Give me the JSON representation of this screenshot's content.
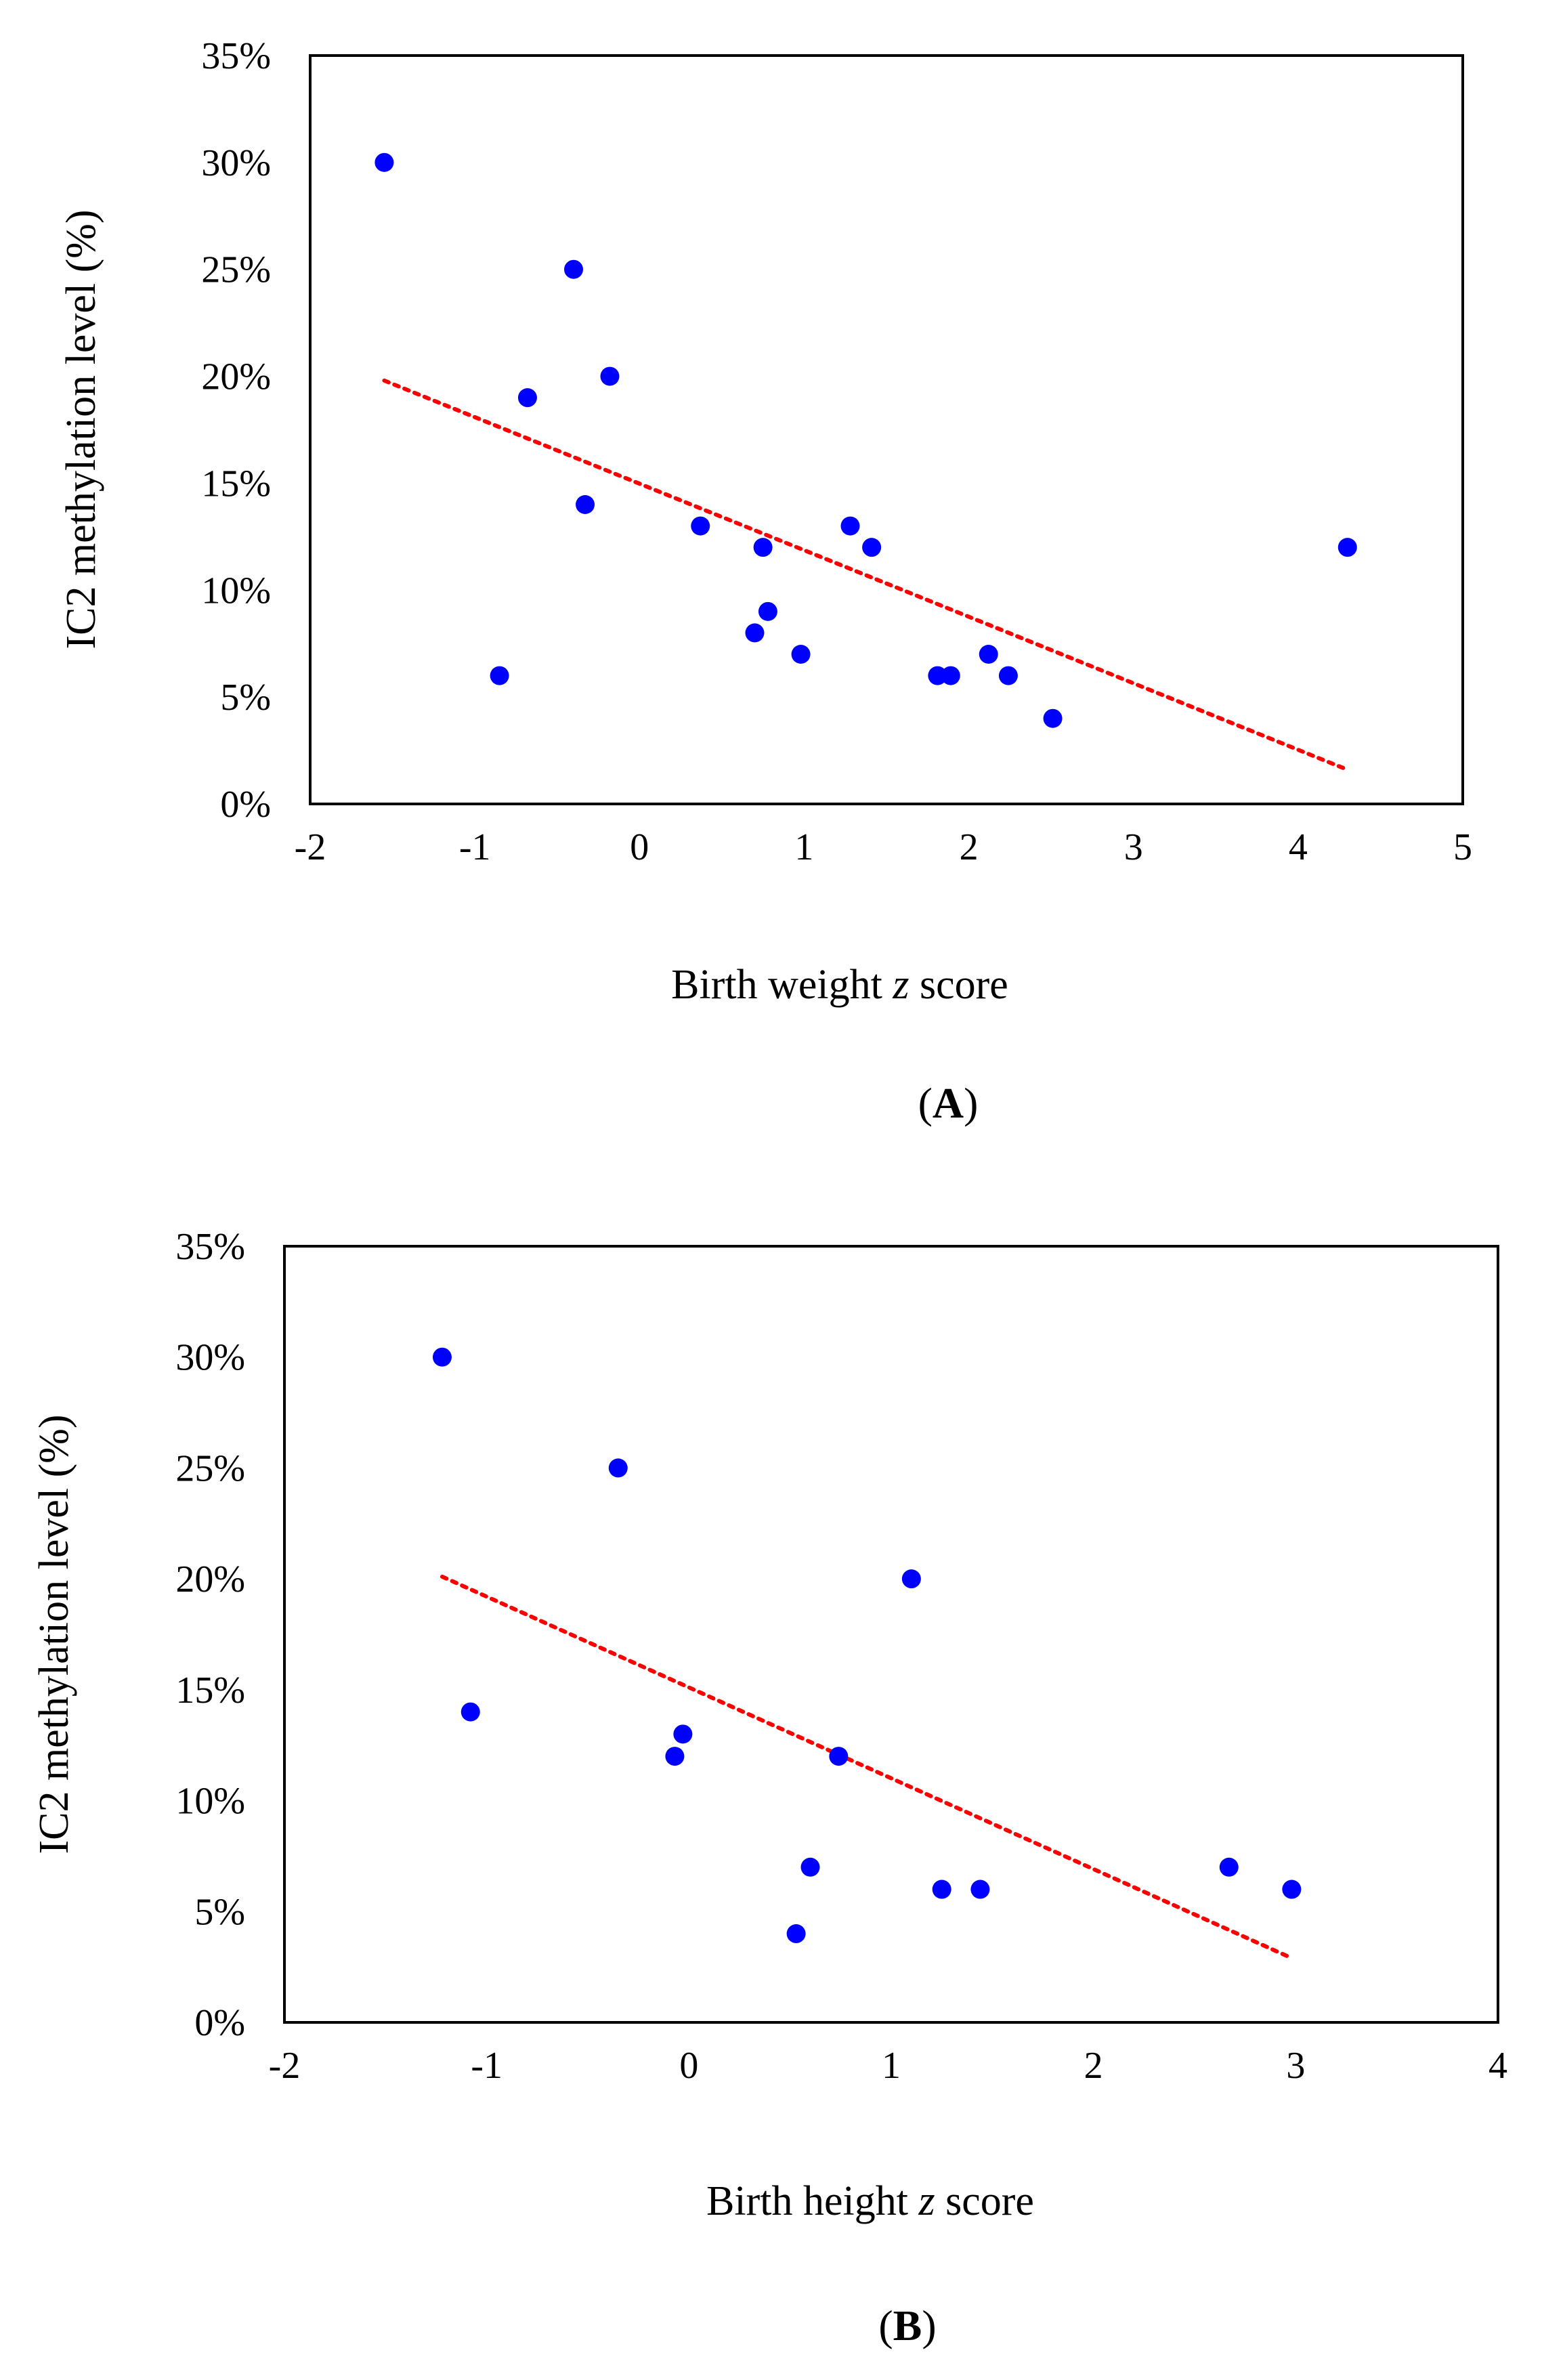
{
  "colors": {
    "point": "#0000ff",
    "trendline": "#ff0000",
    "axis": "#000000",
    "background": "#ffffff"
  },
  "chart_data": [
    {
      "type": "scatter",
      "panel_label": "A",
      "xlabel_prefix": "Birth weight ",
      "xlabel_var": "z",
      "xlabel_suffix": " score",
      "ylabel": "IC2 methylation level (%)",
      "xlim": [
        -2,
        5
      ],
      "ylim": [
        0,
        35
      ],
      "x_ticks": [
        -2,
        -1,
        0,
        1,
        2,
        3,
        4,
        5
      ],
      "x_tick_labels": [
        "-2",
        "-1",
        "0",
        "1",
        "2",
        "3",
        "4",
        "5"
      ],
      "y_ticks": [
        0,
        5,
        10,
        15,
        20,
        25,
        30,
        35
      ],
      "y_tick_labels": [
        "0%",
        "5%",
        "10%",
        "15%",
        "20%",
        "25%",
        "30%",
        "35%"
      ],
      "points": [
        {
          "x": -1.55,
          "y": 30
        },
        {
          "x": -0.85,
          "y": 6
        },
        {
          "x": -0.68,
          "y": 19
        },
        {
          "x": -0.4,
          "y": 25
        },
        {
          "x": -0.33,
          "y": 14
        },
        {
          "x": -0.18,
          "y": 20
        },
        {
          "x": 0.37,
          "y": 13
        },
        {
          "x": 0.7,
          "y": 8
        },
        {
          "x": 0.75,
          "y": 12
        },
        {
          "x": 0.78,
          "y": 9
        },
        {
          "x": 0.98,
          "y": 7
        },
        {
          "x": 1.28,
          "y": 13
        },
        {
          "x": 1.41,
          "y": 12
        },
        {
          "x": 1.81,
          "y": 6
        },
        {
          "x": 1.89,
          "y": 6
        },
        {
          "x": 2.12,
          "y": 7
        },
        {
          "x": 2.24,
          "y": 6
        },
        {
          "x": 2.51,
          "y": 4
        },
        {
          "x": 4.3,
          "y": 12
        }
      ],
      "trendline": {
        "x1": -1.55,
        "y1": 19.8,
        "x2": 4.3,
        "y2": 1.6
      }
    },
    {
      "type": "scatter",
      "panel_label": "B",
      "xlabel_prefix": "Birth height ",
      "xlabel_var": "z",
      "xlabel_suffix": " score",
      "ylabel": "IC2 methylation level (%)",
      "xlim": [
        -2,
        4
      ],
      "ylim": [
        0,
        35
      ],
      "x_ticks": [
        -2,
        -1,
        0,
        1,
        2,
        3,
        4
      ],
      "x_tick_labels": [
        "-2",
        "-1",
        "0",
        "1",
        "2",
        "3",
        "4"
      ],
      "y_ticks": [
        0,
        5,
        10,
        15,
        20,
        25,
        30,
        35
      ],
      "y_tick_labels": [
        "0%",
        "5%",
        "10%",
        "15%",
        "20%",
        "25%",
        "30%",
        "35%"
      ],
      "points": [
        {
          "x": -1.22,
          "y": 30
        },
        {
          "x": -1.08,
          "y": 14
        },
        {
          "x": -0.35,
          "y": 25
        },
        {
          "x": -0.07,
          "y": 12
        },
        {
          "x": -0.03,
          "y": 13
        },
        {
          "x": 0.53,
          "y": 4
        },
        {
          "x": 0.6,
          "y": 7
        },
        {
          "x": 0.74,
          "y": 12
        },
        {
          "x": 1.1,
          "y": 20
        },
        {
          "x": 1.25,
          "y": 6
        },
        {
          "x": 1.44,
          "y": 6
        },
        {
          "x": 2.67,
          "y": 7
        },
        {
          "x": 2.98,
          "y": 6
        }
      ],
      "trendline": {
        "x1": -1.22,
        "y1": 20.1,
        "x2": 2.98,
        "y2": 2.9
      }
    }
  ]
}
